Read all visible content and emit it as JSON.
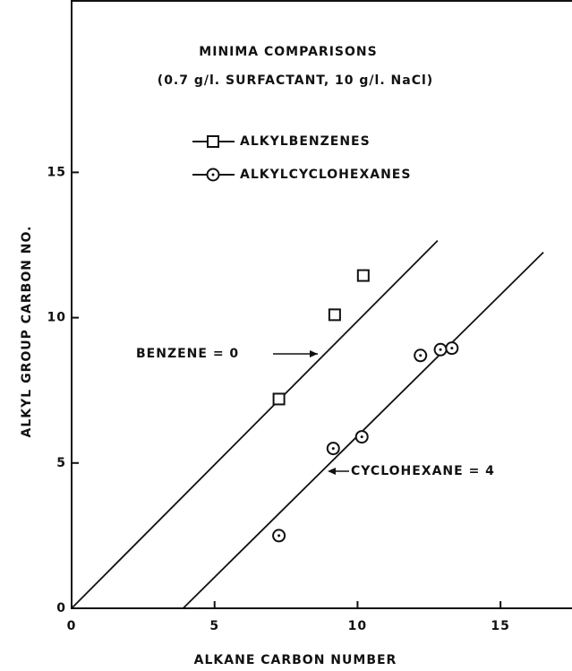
{
  "chart_data": {
    "type": "scatter",
    "title": "MINIMA COMPARISONS",
    "subtitle": "(0.7 g/l. SURFACTANT, 10 g/l. NaCl)",
    "xlabel": "ALKANE CARBON NUMBER",
    "ylabel": "ALKYL GROUP CARBON NO.",
    "xlim": [
      0,
      17.5
    ],
    "ylim": [
      0,
      20.9
    ],
    "xticks": [
      0,
      5,
      10,
      15
    ],
    "yticks": [
      0,
      5,
      10,
      15
    ],
    "color": "#111111",
    "series": [
      {
        "name": "ALKYLBENZENES",
        "marker": "square",
        "x": [
          7.25,
          9.2,
          10.2
        ],
        "values": [
          7.2,
          10.1,
          11.45
        ]
      },
      {
        "name": "ALKYLCYCLOHEXANES",
        "marker": "circle",
        "x": [
          7.25,
          9.15,
          10.15,
          12.2,
          12.9,
          13.3
        ],
        "values": [
          2.5,
          5.5,
          5.9,
          8.7,
          8.9,
          8.95
        ]
      }
    ],
    "lines": [
      {
        "x": [
          0,
          12.8
        ],
        "values": [
          0,
          12.65
        ]
      },
      {
        "x": [
          3.9,
          16.5
        ],
        "values": [
          0,
          12.25
        ]
      }
    ],
    "annotations": [
      "BENZENE = 0",
      "CYCLOHEXANE = 4"
    ]
  }
}
